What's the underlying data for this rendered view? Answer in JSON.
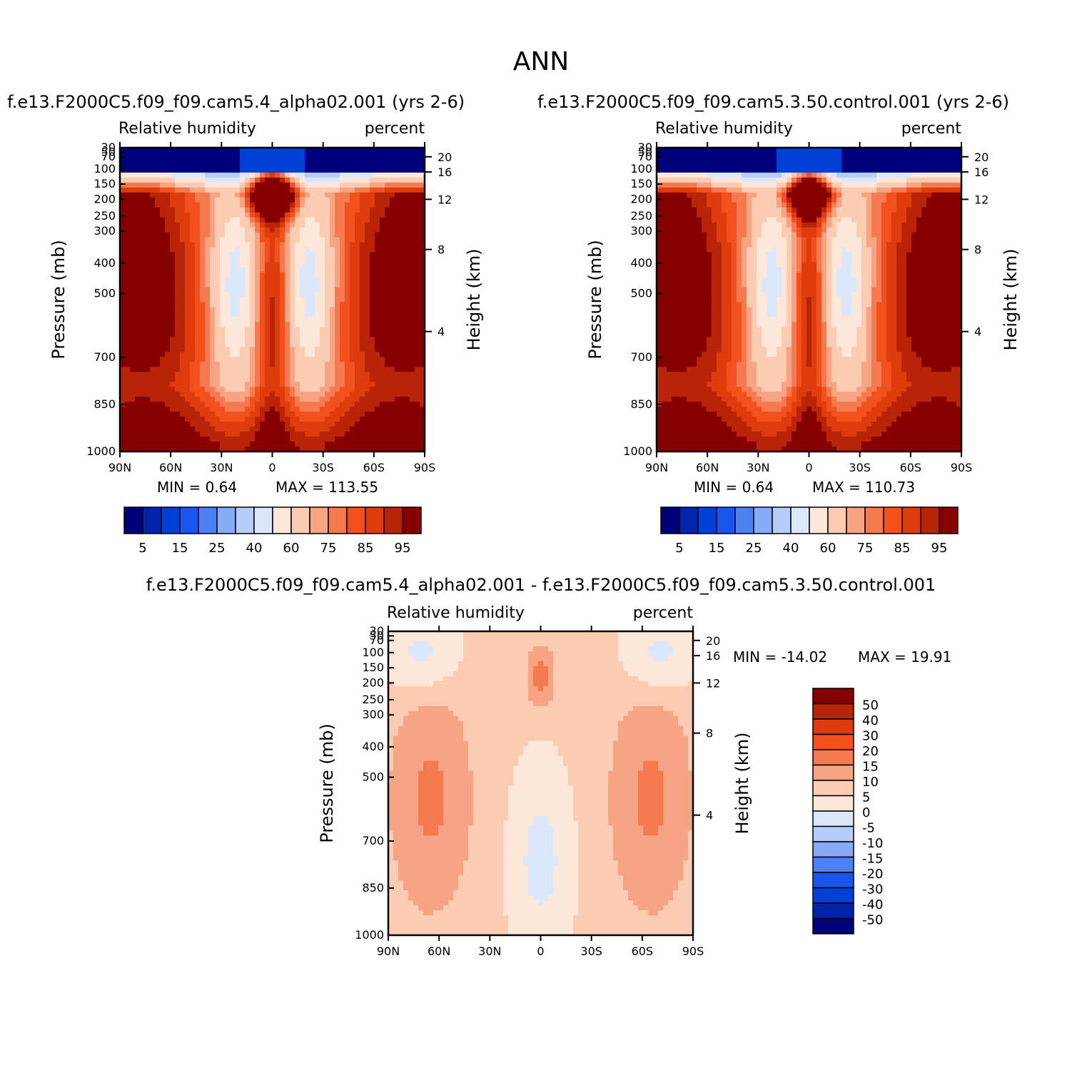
{
  "figure": {
    "title": "ANN"
  },
  "colors": {
    "rh_scale": [
      "#00007d",
      "#0025a8",
      "#0040d6",
      "#1a55ee",
      "#4d80f5",
      "#87abf5",
      "#b5cdf8",
      "#dbe8fb",
      "#fde7d8",
      "#fbcbb2",
      "#f7a485",
      "#f57a50",
      "#f2511d",
      "#de3c0c",
      "#b92308",
      "#870000"
    ],
    "diff_scale": [
      "#00007d",
      "#0025a8",
      "#0040d6",
      "#1a55ee",
      "#4d80f5",
      "#87abf5",
      "#b5cdf8",
      "#dbe8fb",
      "#fde7d8",
      "#fbcbb2",
      "#f7a485",
      "#f57a50",
      "#f2511d",
      "#de3c0c",
      "#b92308",
      "#870000"
    ]
  },
  "chart_data": [
    {
      "id": "test",
      "type": "heatmap",
      "case_title": "f.e13.F2000C5.f09_f09.cam5.4_alpha02.001 (yrs 2-6)",
      "left_title": "Relative humidity",
      "right_title": "percent",
      "ylabel": "Pressure (mb)",
      "ylabel_right": "Height (km)",
      "x_ticks": [
        "90N",
        "60N",
        "30N",
        "0",
        "30S",
        "60S",
        "90S"
      ],
      "y_ticks": [
        "30",
        "50",
        "70",
        "100",
        "150",
        "200",
        "250",
        "300",
        "400",
        "500",
        "700",
        "850",
        "1000"
      ],
      "y_right_ticks": [
        "20",
        "16",
        "12",
        "8",
        "4"
      ],
      "min_label": "MIN = 0.64",
      "max_label": "MAX = 113.55",
      "min": 0.64,
      "max": 113.55,
      "colorbar_labels": [
        "5",
        "15",
        "25",
        "40",
        "60",
        "75",
        "85",
        "95"
      ],
      "colorbar_levels": [
        5,
        10,
        15,
        20,
        25,
        30,
        40,
        50,
        60,
        70,
        75,
        80,
        85,
        90,
        95
      ]
    },
    {
      "id": "control",
      "type": "heatmap",
      "case_title": "f.e13.F2000C5.f09_f09.cam5.3.50.control.001 (yrs 2-6)",
      "left_title": "Relative humidity",
      "right_title": "percent",
      "ylabel": "Pressure (mb)",
      "ylabel_right": "Height (km)",
      "x_ticks": [
        "90N",
        "60N",
        "30N",
        "0",
        "30S",
        "60S",
        "90S"
      ],
      "y_ticks": [
        "30",
        "50",
        "70",
        "100",
        "150",
        "200",
        "250",
        "300",
        "400",
        "500",
        "700",
        "850",
        "1000"
      ],
      "y_right_ticks": [
        "20",
        "16",
        "12",
        "8",
        "4"
      ],
      "min_label": "MIN = 0.64",
      "max_label": "MAX = 110.73",
      "min": 0.64,
      "max": 110.73,
      "colorbar_labels": [
        "5",
        "15",
        "25",
        "40",
        "60",
        "75",
        "85",
        "95"
      ],
      "colorbar_levels": [
        5,
        10,
        15,
        20,
        25,
        30,
        40,
        50,
        60,
        70,
        75,
        80,
        85,
        90,
        95
      ]
    },
    {
      "id": "diff",
      "type": "heatmap",
      "case_title": "f.e13.F2000C5.f09_f09.cam5.4_alpha02.001 - f.e13.F2000C5.f09_f09.cam5.3.50.control.001",
      "left_title": "Relative humidity",
      "right_title": "percent",
      "ylabel": "Pressure (mb)",
      "ylabel_right": "Height (km)",
      "x_ticks": [
        "90N",
        "60N",
        "30N",
        "0",
        "30S",
        "60S",
        "90S"
      ],
      "y_ticks": [
        "30",
        "50",
        "70",
        "100",
        "150",
        "200",
        "250",
        "300",
        "400",
        "500",
        "700",
        "850",
        "1000"
      ],
      "y_right_ticks": [
        "20",
        "16",
        "12",
        "8",
        "4"
      ],
      "min_label": "MIN = -14.02",
      "max_label": "MAX = 19.91",
      "min": -14.02,
      "max": 19.91,
      "colorbar_labels": [
        "50",
        "40",
        "30",
        "20",
        "15",
        "10",
        "5",
        "0",
        "-5",
        "-10",
        "-15",
        "-20",
        "-30",
        "-40",
        "-50"
      ],
      "colorbar_levels": [
        -50,
        -40,
        -30,
        -20,
        -15,
        -10,
        -5,
        0,
        5,
        10,
        15,
        20,
        30,
        40,
        50
      ]
    }
  ]
}
